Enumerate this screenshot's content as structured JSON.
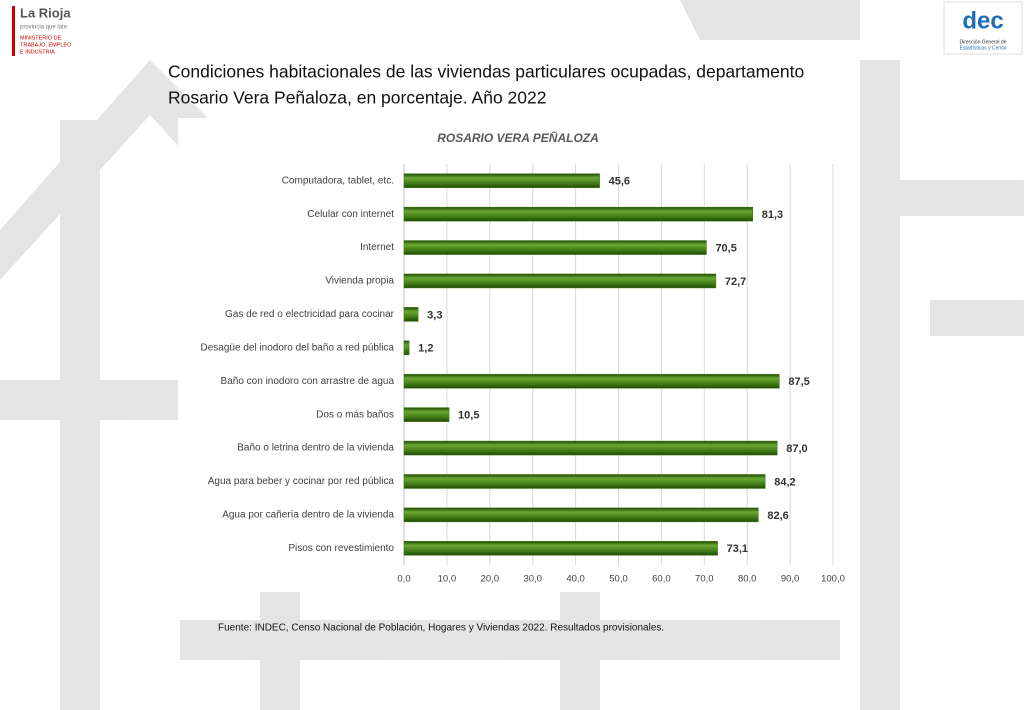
{
  "header": {
    "logo_left": "La Rioja",
    "logo_left_tagline": "provincia que late",
    "ministry": [
      "MINISTERIO DE",
      "TRABAJO, EMPLEO",
      "E INDUSTRIA"
    ],
    "logo_right": "dec",
    "logo_right_caption": [
      "Dirección General de",
      "Estadísticas y Censo"
    ]
  },
  "chart_data": {
    "type": "bar",
    "orientation": "horizontal",
    "title": [
      "Condiciones habitacionales de las viviendas particulares ocupadas, departamento",
      "Rosario Vera Peñaloza, en porcentaje. Año 2022"
    ],
    "subtitle": "ROSARIO VERA PEÑALOZA",
    "categories": [
      "Computadora, tablet, etc.",
      "Celular con internet",
      "Internet",
      "Vivienda propia",
      "Gas de red o electricidad para cocinar",
      "Desagüe del inodoro del baño a red pública",
      "Baño con inodoro con arrastre de agua",
      "Dos o más baños",
      "Baño o letrina dentro de la vivienda",
      "Agua para beber y cocinar por red pública",
      "Agua por cañería dentro de la vivienda",
      "Pisos con revestimiento"
    ],
    "values": [
      45.6,
      81.3,
      70.5,
      72.7,
      3.3,
      1.2,
      87.5,
      10.5,
      87.0,
      84.2,
      82.6,
      73.1
    ],
    "value_labels": [
      "45,6",
      "81,3",
      "70,5",
      "72,7",
      "3,3",
      "1,2",
      "87,5",
      "10,5",
      "87,0",
      "84,2",
      "82,6",
      "73,1"
    ],
    "color": "#3f7a14",
    "xlim": [
      0,
      100
    ],
    "xticks": [
      {
        "value": 0,
        "label": "0,0"
      },
      {
        "value": 10,
        "label": "10,0"
      },
      {
        "value": 20,
        "label": "20,0"
      },
      {
        "value": 30,
        "label": "30,0"
      },
      {
        "value": 40,
        "label": "40,0"
      },
      {
        "value": 50,
        "label": "50,0"
      },
      {
        "value": 60,
        "label": "60,0"
      },
      {
        "value": 70,
        "label": "70,0"
      },
      {
        "value": 80,
        "label": "80,0"
      },
      {
        "value": 90,
        "label": "90,0"
      },
      {
        "value": 100,
        "label": "100,0"
      }
    ],
    "grid": true,
    "source": "Fuente: INDEC, Censo Nacional de Población, Hogares y Viviendas 2022. Resultados provisionales."
  }
}
